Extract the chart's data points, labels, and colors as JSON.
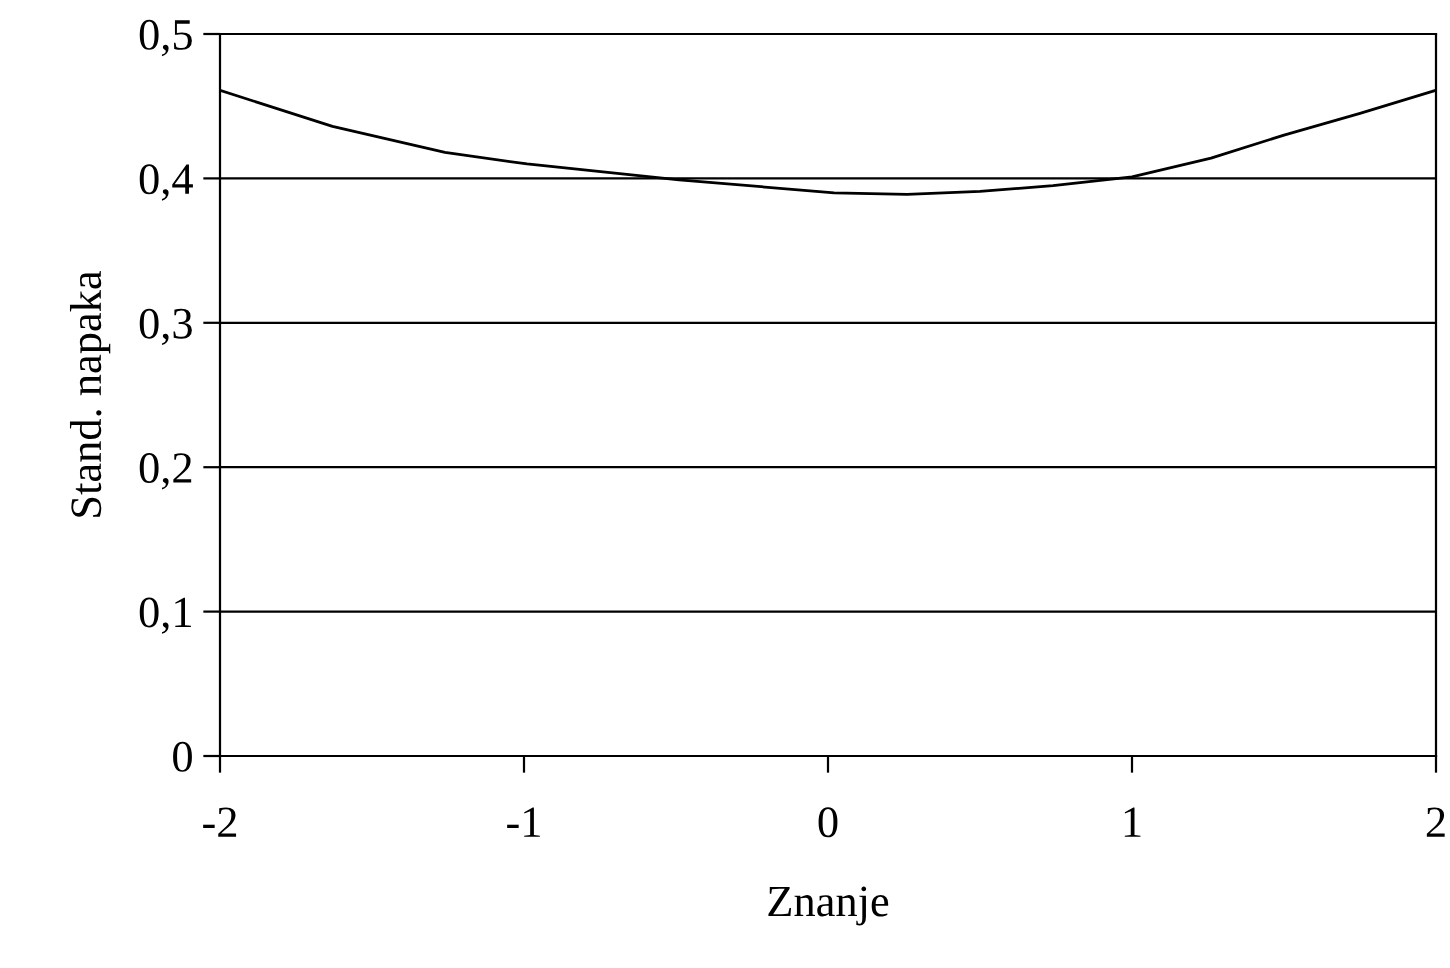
{
  "chart_data": {
    "type": "line",
    "xlabel": "Znanje",
    "ylabel": "Stand. napaka",
    "x": [
      -2,
      -1.63,
      -1.26,
      -0.99,
      -0.49,
      0.02,
      0.26,
      0.5,
      0.74,
      1.0,
      1.26,
      1.5,
      1.75,
      2
    ],
    "series": [
      {
        "color": "#000000",
        "values": [
          0.461,
          0.436,
          0.418,
          0.41,
          0.399,
          0.39,
          0.389,
          0.391,
          0.395,
          0.401,
          0.414,
          0.43,
          0.445,
          0.461
        ]
      }
    ],
    "xlim": [
      -2,
      2
    ],
    "ylim": [
      0,
      0.5
    ],
    "xticks": [
      -2,
      -1,
      0,
      1,
      2
    ],
    "yticks": [
      {
        "value": 0,
        "label": "0"
      },
      {
        "value": 0.1,
        "label": "0,1"
      },
      {
        "value": 0.2,
        "label": "0,2"
      },
      {
        "value": 0.3,
        "label": "0,3"
      },
      {
        "value": 0.4,
        "label": "0,4"
      },
      {
        "value": 0.5,
        "label": "0,5"
      }
    ],
    "grid": "y",
    "marker": "none",
    "line_style": "solid"
  }
}
